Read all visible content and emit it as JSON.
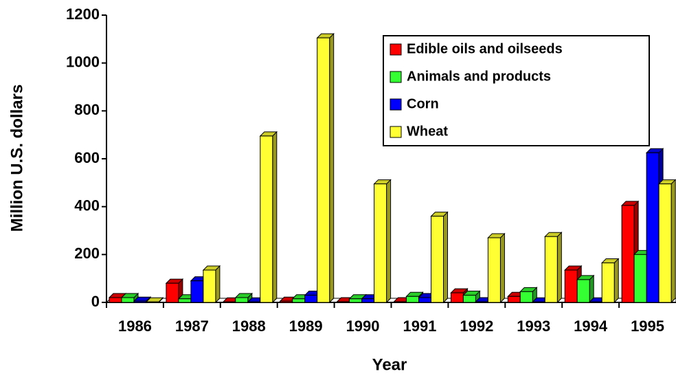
{
  "chart_data": {
    "type": "bar",
    "x_label": "Year",
    "y_label": "Million U.S. dollars",
    "categories": [
      "1986",
      "1987",
      "1988",
      "1989",
      "1990",
      "1991",
      "1992",
      "1993",
      "1994",
      "1995"
    ],
    "series": [
      {
        "name": "Edible oils and oilseeds",
        "color": "#ff0000",
        "values": [
          20,
          80,
          2,
          5,
          3,
          3,
          40,
          25,
          135,
          405
        ]
      },
      {
        "name": "Animals and products",
        "color": "#33ff33",
        "values": [
          20,
          15,
          20,
          15,
          15,
          25,
          30,
          45,
          95,
          200
        ]
      },
      {
        "name": "Corn",
        "color": "#0000ff",
        "values": [
          5,
          90,
          2,
          30,
          15,
          20,
          3,
          2,
          2,
          625
        ]
      },
      {
        "name": "Wheat",
        "color": "#ffff33",
        "values": [
          2,
          135,
          695,
          1105,
          495,
          360,
          270,
          275,
          165,
          495
        ]
      }
    ],
    "ylim": [
      0,
      1200
    ],
    "yticks": [
      0,
      200,
      400,
      600,
      800,
      1000,
      1200
    ],
    "legend": "upper right",
    "grid": false
  }
}
